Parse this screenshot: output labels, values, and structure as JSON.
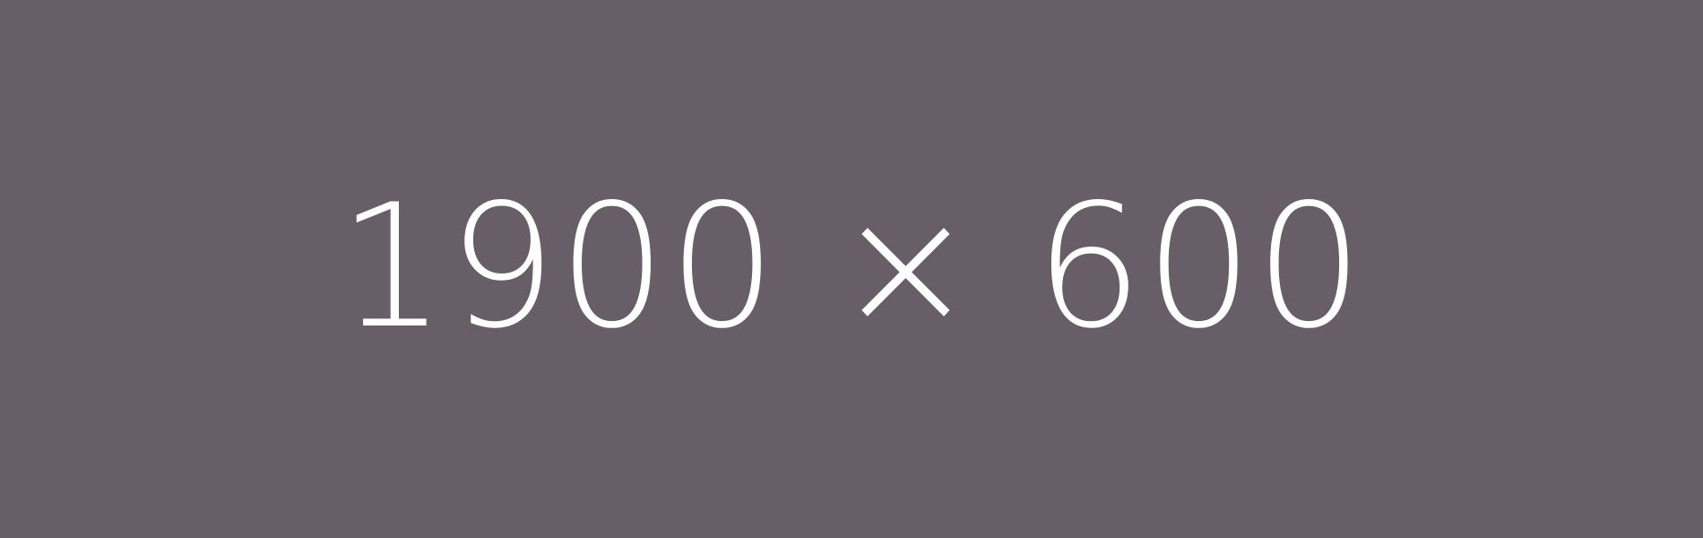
{
  "placeholder": {
    "label": "1900 × 600",
    "background_color": "#675e67",
    "text_color": "#ffffff"
  }
}
